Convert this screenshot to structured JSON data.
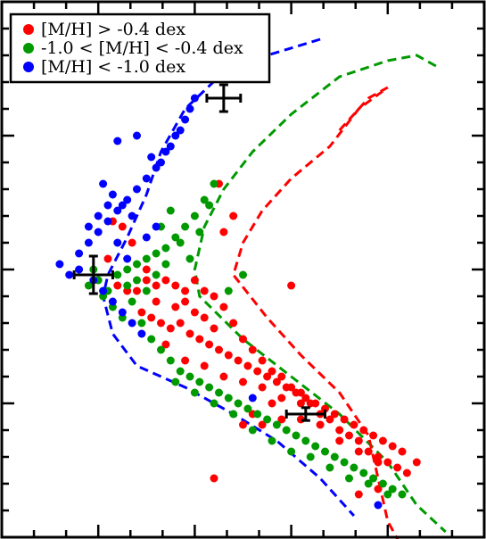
{
  "chart_data": {
    "type": "scatter",
    "title": "",
    "xlabel": "",
    "ylabel": "",
    "xlim": [
      0,
      1
    ],
    "ylim": [
      0,
      1
    ],
    "grid": false,
    "legend_placement": "top-left",
    "series": [
      {
        "name": "[M/H] > -0.4 dex",
        "color": "#ff0000",
        "points": [
          [
            0.22,
            0.52
          ],
          [
            0.24,
            0.47
          ],
          [
            0.26,
            0.46
          ],
          [
            0.28,
            0.46
          ],
          [
            0.3,
            0.48
          ],
          [
            0.32,
            0.47
          ],
          [
            0.34,
            0.48
          ],
          [
            0.36,
            0.47
          ],
          [
            0.38,
            0.46
          ],
          [
            0.4,
            0.48
          ],
          [
            0.42,
            0.46
          ],
          [
            0.44,
            0.45
          ],
          [
            0.46,
            0.43
          ],
          [
            0.29,
            0.42
          ],
          [
            0.31,
            0.41
          ],
          [
            0.33,
            0.4
          ],
          [
            0.35,
            0.39
          ],
          [
            0.37,
            0.4
          ],
          [
            0.39,
            0.38
          ],
          [
            0.41,
            0.37
          ],
          [
            0.43,
            0.36
          ],
          [
            0.45,
            0.35
          ],
          [
            0.47,
            0.34
          ],
          [
            0.49,
            0.33
          ],
          [
            0.51,
            0.32
          ],
          [
            0.53,
            0.31
          ],
          [
            0.55,
            0.3
          ],
          [
            0.57,
            0.29
          ],
          [
            0.59,
            0.28
          ],
          [
            0.61,
            0.27
          ],
          [
            0.63,
            0.26
          ],
          [
            0.65,
            0.25
          ],
          [
            0.67,
            0.24
          ],
          [
            0.69,
            0.23
          ],
          [
            0.71,
            0.22
          ],
          [
            0.73,
            0.21
          ],
          [
            0.75,
            0.2
          ],
          [
            0.77,
            0.19
          ],
          [
            0.79,
            0.18
          ],
          [
            0.81,
            0.17
          ],
          [
            0.83,
            0.16
          ],
          [
            0.48,
            0.4
          ],
          [
            0.5,
            0.37
          ],
          [
            0.52,
            0.35
          ],
          [
            0.54,
            0.33
          ],
          [
            0.56,
            0.31
          ],
          [
            0.58,
            0.3
          ],
          [
            0.6,
            0.28
          ],
          [
            0.62,
            0.27
          ],
          [
            0.64,
            0.25
          ],
          [
            0.66,
            0.23
          ],
          [
            0.68,
            0.22
          ],
          [
            0.7,
            0.2
          ],
          [
            0.72,
            0.19
          ],
          [
            0.74,
            0.18
          ],
          [
            0.76,
            0.16
          ],
          [
            0.78,
            0.15
          ],
          [
            0.8,
            0.14
          ],
          [
            0.82,
            0.13
          ],
          [
            0.84,
            0.12
          ],
          [
            0.86,
            0.14
          ],
          [
            0.6,
            0.47
          ],
          [
            0.46,
            0.57
          ],
          [
            0.48,
            0.6
          ],
          [
            0.45,
            0.66
          ],
          [
            0.25,
            0.58
          ],
          [
            0.27,
            0.55
          ],
          [
            0.23,
            0.59
          ],
          [
            0.44,
            0.11
          ],
          [
            0.74,
            0.08
          ],
          [
            0.78,
            0.09
          ],
          [
            0.5,
            0.21
          ],
          [
            0.52,
            0.23
          ],
          [
            0.54,
            0.21
          ],
          [
            0.58,
            0.22
          ],
          [
            0.62,
            0.22
          ],
          [
            0.56,
            0.25
          ],
          [
            0.42,
            0.41
          ],
          [
            0.36,
            0.43
          ],
          [
            0.38,
            0.44
          ],
          [
            0.4,
            0.42
          ],
          [
            0.34,
            0.36
          ],
          [
            0.38,
            0.33
          ],
          [
            0.42,
            0.32
          ],
          [
            0.46,
            0.3
          ],
          [
            0.5,
            0.29
          ],
          [
            0.54,
            0.28
          ],
          [
            0.58,
            0.26
          ],
          [
            0.62,
            0.25
          ],
          [
            0.66,
            0.21
          ],
          [
            0.7,
            0.18
          ],
          [
            0.74,
            0.16
          ],
          [
            0.78,
            0.14
          ],
          [
            0.3,
            0.5
          ],
          [
            0.32,
            0.44
          ],
          [
            0.44,
            0.39
          ]
        ]
      },
      {
        "name": "-1.0 < [M/H] < -0.4 dex",
        "color": "#009900",
        "points": [
          [
            0.2,
            0.48
          ],
          [
            0.22,
            0.46
          ],
          [
            0.24,
            0.49
          ],
          [
            0.26,
            0.5
          ],
          [
            0.28,
            0.51
          ],
          [
            0.3,
            0.52
          ],
          [
            0.32,
            0.53
          ],
          [
            0.34,
            0.54
          ],
          [
            0.36,
            0.56
          ],
          [
            0.38,
            0.58
          ],
          [
            0.4,
            0.6
          ],
          [
            0.42,
            0.63
          ],
          [
            0.44,
            0.66
          ],
          [
            0.27,
            0.44
          ],
          [
            0.29,
            0.4
          ],
          [
            0.31,
            0.37
          ],
          [
            0.33,
            0.35
          ],
          [
            0.35,
            0.33
          ],
          [
            0.37,
            0.31
          ],
          [
            0.39,
            0.3
          ],
          [
            0.41,
            0.29
          ],
          [
            0.43,
            0.28
          ],
          [
            0.45,
            0.27
          ],
          [
            0.47,
            0.26
          ],
          [
            0.49,
            0.25
          ],
          [
            0.51,
            0.24
          ],
          [
            0.53,
            0.23
          ],
          [
            0.55,
            0.22
          ],
          [
            0.57,
            0.21
          ],
          [
            0.59,
            0.2
          ],
          [
            0.61,
            0.19
          ],
          [
            0.63,
            0.18
          ],
          [
            0.65,
            0.17
          ],
          [
            0.67,
            0.16
          ],
          [
            0.69,
            0.15
          ],
          [
            0.71,
            0.14
          ],
          [
            0.73,
            0.13
          ],
          [
            0.75,
            0.12
          ],
          [
            0.77,
            0.11
          ],
          [
            0.79,
            0.1
          ],
          [
            0.81,
            0.09
          ],
          [
            0.83,
            0.08
          ],
          [
            0.36,
            0.29
          ],
          [
            0.4,
            0.27
          ],
          [
            0.44,
            0.25
          ],
          [
            0.48,
            0.23
          ],
          [
            0.52,
            0.2
          ],
          [
            0.56,
            0.18
          ],
          [
            0.6,
            0.16
          ],
          [
            0.64,
            0.15
          ],
          [
            0.68,
            0.13
          ],
          [
            0.72,
            0.11
          ],
          [
            0.76,
            0.1
          ],
          [
            0.8,
            0.08
          ],
          [
            0.5,
            0.49
          ],
          [
            0.47,
            0.46
          ],
          [
            0.33,
            0.58
          ],
          [
            0.35,
            0.61
          ],
          [
            0.37,
            0.55
          ],
          [
            0.39,
            0.52
          ],
          [
            0.41,
            0.57
          ],
          [
            0.43,
            0.62
          ],
          [
            0.25,
            0.41
          ],
          [
            0.23,
            0.43
          ],
          [
            0.21,
            0.45
          ],
          [
            0.18,
            0.47
          ],
          [
            0.19,
            0.5
          ],
          [
            0.26,
            0.47
          ],
          [
            0.28,
            0.48
          ],
          [
            0.3,
            0.46
          ],
          [
            0.32,
            0.49
          ],
          [
            0.34,
            0.51
          ]
        ]
      },
      {
        "name": "[M/H] < -1.0 dex",
        "color": "#0000ff",
        "points": [
          [
            0.12,
            0.51
          ],
          [
            0.14,
            0.49
          ],
          [
            0.16,
            0.53
          ],
          [
            0.18,
            0.55
          ],
          [
            0.2,
            0.57
          ],
          [
            0.22,
            0.59
          ],
          [
            0.24,
            0.61
          ],
          [
            0.26,
            0.63
          ],
          [
            0.28,
            0.65
          ],
          [
            0.3,
            0.67
          ],
          [
            0.32,
            0.69
          ],
          [
            0.34,
            0.72
          ],
          [
            0.36,
            0.75
          ],
          [
            0.38,
            0.78
          ],
          [
            0.4,
            0.82
          ],
          [
            0.19,
            0.48
          ],
          [
            0.21,
            0.46
          ],
          [
            0.23,
            0.44
          ],
          [
            0.25,
            0.42
          ],
          [
            0.27,
            0.4
          ],
          [
            0.29,
            0.38
          ],
          [
            0.21,
            0.66
          ],
          [
            0.23,
            0.64
          ],
          [
            0.25,
            0.62
          ],
          [
            0.27,
            0.6
          ],
          [
            0.33,
            0.7
          ],
          [
            0.35,
            0.73
          ],
          [
            0.37,
            0.76
          ],
          [
            0.39,
            0.8
          ],
          [
            0.24,
            0.74
          ],
          [
            0.28,
            0.75
          ],
          [
            0.31,
            0.71
          ],
          [
            0.18,
            0.58
          ],
          [
            0.2,
            0.6
          ],
          [
            0.22,
            0.62
          ],
          [
            0.24,
            0.55
          ],
          [
            0.26,
            0.52
          ],
          [
            0.16,
            0.5
          ],
          [
            0.3,
            0.56
          ],
          [
            0.32,
            0.58
          ],
          [
            0.52,
            0.26
          ],
          [
            0.78,
            0.06
          ]
        ]
      }
    ],
    "model_tracks": [
      {
        "color": "#0000ff",
        "points": [
          [
            0.66,
            0.93
          ],
          [
            0.55,
            0.9
          ],
          [
            0.45,
            0.86
          ],
          [
            0.38,
            0.8
          ],
          [
            0.33,
            0.72
          ],
          [
            0.3,
            0.64
          ],
          [
            0.26,
            0.56
          ],
          [
            0.22,
            0.49
          ],
          [
            0.21,
            0.45
          ],
          [
            0.23,
            0.38
          ],
          [
            0.28,
            0.32
          ],
          [
            0.38,
            0.28
          ],
          [
            0.48,
            0.23
          ],
          [
            0.57,
            0.18
          ],
          [
            0.66,
            0.11
          ],
          [
            0.73,
            0.04
          ]
        ]
      },
      {
        "color": "#009900",
        "points": [
          [
            0.9,
            0.88
          ],
          [
            0.86,
            0.9
          ],
          [
            0.8,
            0.89
          ],
          [
            0.7,
            0.86
          ],
          [
            0.6,
            0.79
          ],
          [
            0.52,
            0.72
          ],
          [
            0.46,
            0.65
          ],
          [
            0.42,
            0.58
          ],
          [
            0.4,
            0.5
          ],
          [
            0.41,
            0.45
          ],
          [
            0.5,
            0.37
          ],
          [
            0.6,
            0.3
          ],
          [
            0.7,
            0.23
          ],
          [
            0.8,
            0.14
          ],
          [
            0.86,
            0.06
          ],
          [
            0.92,
            0.01
          ]
        ]
      },
      {
        "color": "#ff0000",
        "points": [
          [
            0.7,
            0.76
          ],
          [
            0.76,
            0.82
          ],
          [
            0.8,
            0.84
          ],
          [
            0.74,
            0.8
          ],
          [
            0.68,
            0.73
          ],
          [
            0.6,
            0.67
          ],
          [
            0.54,
            0.61
          ],
          [
            0.5,
            0.55
          ],
          [
            0.48,
            0.49
          ],
          [
            0.55,
            0.41
          ],
          [
            0.62,
            0.34
          ],
          [
            0.7,
            0.27
          ],
          [
            0.76,
            0.19
          ],
          [
            0.78,
            0.11
          ],
          [
            0.8,
            0.03
          ],
          [
            0.83,
            -0.02
          ]
        ]
      }
    ],
    "error_bars": [
      {
        "x": 0.46,
        "y": 0.82,
        "xerr": 0.035,
        "yerr": 0.025
      },
      {
        "x": 0.19,
        "y": 0.49,
        "xerr": 0.04,
        "yerr": 0.035
      },
      {
        "x": 0.63,
        "y": 0.23,
        "xerr": 0.04,
        "yerr": 0.012
      }
    ]
  }
}
